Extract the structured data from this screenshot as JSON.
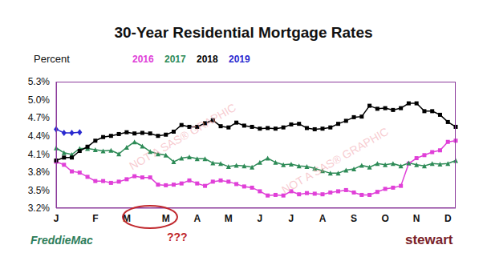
{
  "chart_data": {
    "type": "line",
    "title": "30-Year Residential Mortgage Rates",
    "y_label": "Percent",
    "annotations": [
      "???"
    ],
    "logos": [
      "FreddieMac",
      "stewart"
    ],
    "watermark": "NOT A SAS® GRAPHIC",
    "categories": [
      "J",
      null,
      null,
      null,
      null,
      "F",
      null,
      null,
      null,
      "M",
      null,
      null,
      null,
      null,
      "M",
      null,
      null,
      null,
      "A",
      null,
      null,
      null,
      "M",
      null,
      null,
      null,
      "J",
      null,
      null,
      null,
      "J",
      null,
      null,
      null,
      "A",
      null,
      null,
      null,
      "S",
      null,
      null,
      null,
      "O",
      null,
      null,
      null,
      "N",
      null,
      null,
      null,
      "D",
      null
    ],
    "series": [
      {
        "name": "2016",
        "color": "#e040d8",
        "marker": "square",
        "values": [
          3.97,
          3.92,
          3.81,
          3.79,
          3.72,
          3.65,
          3.65,
          3.62,
          3.64,
          3.68,
          3.73,
          3.71,
          3.71,
          3.59,
          3.58,
          3.59,
          3.61,
          3.66,
          3.61,
          3.57,
          3.64,
          3.66,
          3.64,
          3.6,
          3.56,
          3.54,
          3.48,
          3.41,
          3.42,
          3.41,
          3.48,
          3.43,
          3.45,
          3.44,
          3.43,
          3.46,
          3.48,
          3.5,
          3.46,
          3.42,
          3.42,
          3.47,
          3.52,
          3.54,
          3.57,
          3.94,
          4.03,
          4.08,
          4.13,
          4.16,
          4.3,
          4.32
        ]
      },
      {
        "name": "2017",
        "color": "#2e8b57",
        "marker": "triangle",
        "values": [
          4.2,
          4.12,
          4.09,
          4.19,
          4.19,
          4.17,
          4.15,
          4.16,
          4.1,
          4.21,
          4.3,
          4.23,
          4.14,
          4.1,
          4.08,
          3.97,
          4.03,
          4.05,
          4.02,
          4.02,
          3.95,
          3.94,
          3.89,
          3.91,
          3.9,
          3.88,
          3.96,
          4.03,
          3.96,
          3.92,
          3.93,
          3.9,
          3.89,
          3.86,
          3.82,
          3.78,
          3.78,
          3.83,
          3.85,
          3.91,
          3.88,
          3.94,
          3.92,
          3.94,
          3.9,
          3.95,
          3.92,
          3.9,
          3.94,
          3.93,
          3.94,
          3.99
        ]
      },
      {
        "name": "2018",
        "color": "#000000",
        "marker": "square",
        "values": [
          3.99,
          4.04,
          4.04,
          4.15,
          4.22,
          4.32,
          4.38,
          4.4,
          4.43,
          4.46,
          4.44,
          4.45,
          4.44,
          4.4,
          4.42,
          4.47,
          4.58,
          4.55,
          4.55,
          4.61,
          4.66,
          4.56,
          4.54,
          4.62,
          4.57,
          4.55,
          4.52,
          4.53,
          4.52,
          4.54,
          4.59,
          4.6,
          4.53,
          4.51,
          4.52,
          4.54,
          4.6,
          4.65,
          4.71,
          4.72,
          4.9,
          4.85,
          4.86,
          4.83,
          4.86,
          4.94,
          4.94,
          4.81,
          4.81,
          4.75,
          4.63,
          4.55
        ]
      },
      {
        "name": "2019",
        "color": "#2a2ad0",
        "marker": "diamond",
        "values": [
          4.51,
          4.45,
          4.45,
          4.46,
          null,
          null,
          null,
          null,
          null,
          null,
          null,
          null,
          null,
          null,
          null,
          null,
          null,
          null,
          null,
          null,
          null,
          null,
          null,
          null,
          null,
          null,
          null,
          null,
          null,
          null,
          null,
          null,
          null,
          null,
          null,
          null,
          null,
          null,
          null,
          null,
          null,
          null,
          null,
          null,
          null,
          null,
          null,
          null,
          null,
          null,
          null,
          null
        ]
      }
    ],
    "ylim": [
      3.2,
      5.3
    ],
    "yticks": [
      {
        "value": 3.2,
        "label": "3.2%"
      },
      {
        "value": 3.5,
        "label": "3.5%"
      },
      {
        "value": 3.8,
        "label": "3.8%"
      },
      {
        "value": 4.1,
        "label": "4.1%"
      },
      {
        "value": 4.4,
        "label": "4.4%"
      },
      {
        "value": 4.7,
        "label": "4.7%"
      },
      {
        "value": 5.0,
        "label": "5.0%"
      },
      {
        "value": 5.3,
        "label": "5.3%"
      }
    ],
    "grid": false,
    "legend": "top"
  }
}
